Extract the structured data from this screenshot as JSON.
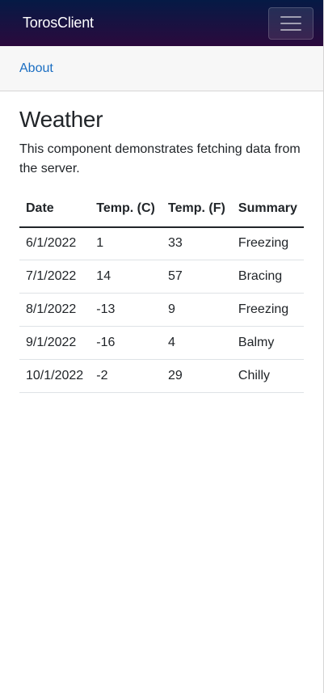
{
  "app": {
    "brand": "TorosClient"
  },
  "nav": {
    "items": [
      {
        "label": "About"
      }
    ]
  },
  "page": {
    "title": "Weather",
    "description": "This component demonstrates fetching data from the server."
  },
  "table": {
    "headers": [
      "Date",
      "Temp. (C)",
      "Temp. (F)",
      "Summary"
    ],
    "rows": [
      {
        "date": "6/1/2022",
        "temp_c": "1",
        "temp_f": "33",
        "summary": "Freezing"
      },
      {
        "date": "7/1/2022",
        "temp_c": "14",
        "temp_f": "57",
        "summary": "Bracing"
      },
      {
        "date": "8/1/2022",
        "temp_c": "-13",
        "temp_f": "9",
        "summary": "Freezing"
      },
      {
        "date": "9/1/2022",
        "temp_c": "-16",
        "temp_f": "4",
        "summary": "Balmy"
      },
      {
        "date": "10/1/2022",
        "temp_c": "-2",
        "temp_f": "29",
        "summary": "Chilly"
      }
    ]
  },
  "icons": {
    "menu": "hamburger-menu-icon"
  },
  "colors": {
    "navbar_top": "#051a45",
    "navbar_bottom": "#2b0a3d",
    "link": "#1b6ec2"
  }
}
